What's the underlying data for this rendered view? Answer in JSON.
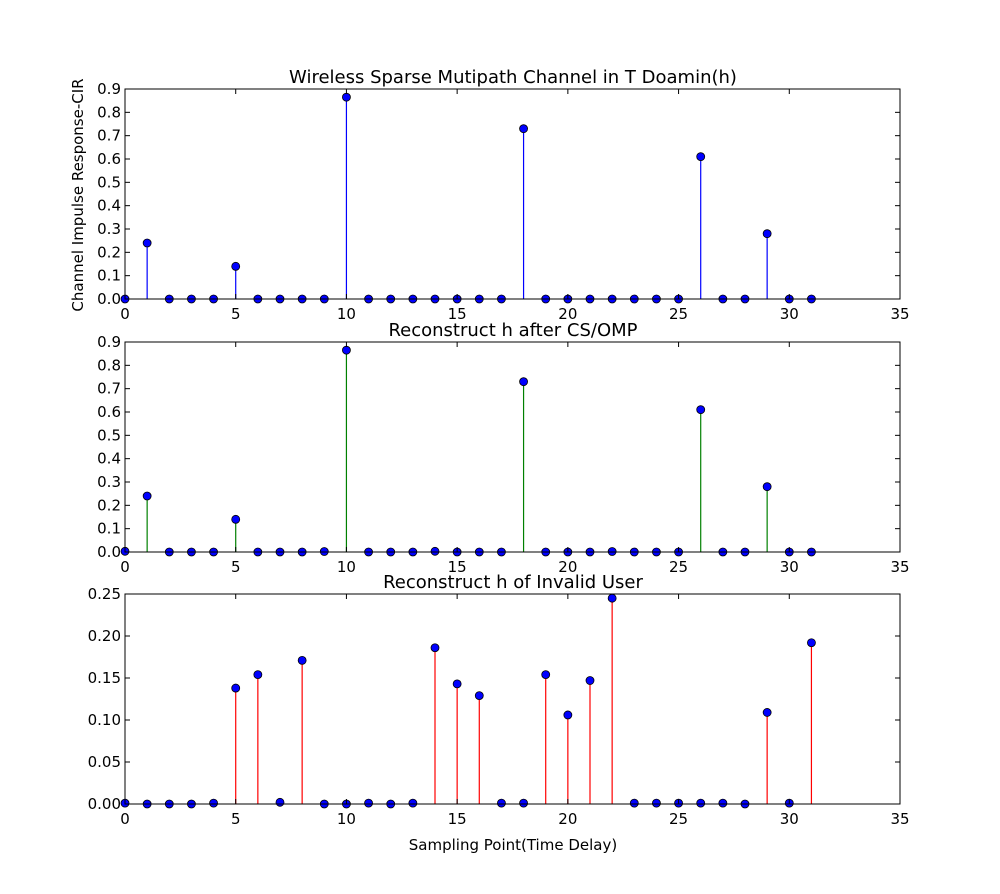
{
  "chart_data": [
    {
      "type": "stem",
      "title": "Wireless Sparse Mutipath Channel in T Doamin(h)",
      "ylabel": "Channel Impulse Response-CIR",
      "xlabel": "",
      "xlim": [
        0,
        35
      ],
      "ylim": [
        0,
        0.9
      ],
      "xticks": [
        "0",
        "5",
        "10",
        "15",
        "20",
        "25",
        "30",
        "35"
      ],
      "yticks": [
        "0.0",
        "0.1",
        "0.2",
        "0.3",
        "0.4",
        "0.5",
        "0.6",
        "0.7",
        "0.8",
        "0.9"
      ],
      "stem_color": "#0000ff",
      "marker_color": "#0000ff",
      "x": [
        0,
        1,
        2,
        3,
        4,
        5,
        6,
        7,
        8,
        9,
        10,
        11,
        12,
        13,
        14,
        15,
        16,
        17,
        18,
        19,
        20,
        21,
        22,
        23,
        24,
        25,
        26,
        27,
        28,
        29,
        30,
        31
      ],
      "values": [
        0,
        0.24,
        0,
        0,
        0,
        0.14,
        0,
        0,
        0,
        0,
        0.865,
        0,
        0,
        0,
        0,
        0,
        0,
        0,
        0.73,
        0,
        0,
        0,
        0,
        0,
        0,
        0,
        0.61,
        0,
        0,
        0.28,
        0,
        0
      ]
    },
    {
      "type": "stem",
      "title": "Reconstruct h after CS/OMP",
      "ylabel": "",
      "xlabel": "",
      "xlim": [
        0,
        35
      ],
      "ylim": [
        0,
        0.9
      ],
      "xticks": [
        "0",
        "5",
        "10",
        "15",
        "20",
        "25",
        "30",
        "35"
      ],
      "yticks": [
        "0.0",
        "0.1",
        "0.2",
        "0.3",
        "0.4",
        "0.5",
        "0.6",
        "0.7",
        "0.8",
        "0.9"
      ],
      "stem_color": "#008000",
      "marker_color": "#0000ff",
      "x": [
        0,
        1,
        2,
        3,
        4,
        5,
        6,
        7,
        8,
        9,
        10,
        11,
        12,
        13,
        14,
        15,
        16,
        17,
        18,
        19,
        20,
        21,
        22,
        23,
        24,
        25,
        26,
        27,
        28,
        29,
        30,
        31
      ],
      "values": [
        0.003,
        0.24,
        0,
        0,
        0,
        0.14,
        0,
        0,
        0,
        0.002,
        0.865,
        0,
        0,
        0,
        0.003,
        0,
        0,
        0,
        0.73,
        0,
        0,
        0,
        0.002,
        0,
        0,
        0,
        0.61,
        0,
        0,
        0.28,
        0,
        0
      ]
    },
    {
      "type": "stem",
      "title": "Reconstruct h of Invalid User",
      "ylabel": "",
      "xlabel": "Sampling Point(Time Delay)",
      "xlim": [
        0,
        35
      ],
      "ylim": [
        0,
        0.25
      ],
      "xticks": [
        "0",
        "5",
        "10",
        "15",
        "20",
        "25",
        "30",
        "35"
      ],
      "yticks": [
        "0.00",
        "0.05",
        "0.10",
        "0.15",
        "0.20",
        "0.25"
      ],
      "stem_color": "#ff0000",
      "marker_color": "#0000ff",
      "x": [
        0,
        1,
        2,
        3,
        4,
        5,
        6,
        7,
        8,
        9,
        10,
        11,
        12,
        13,
        14,
        15,
        16,
        17,
        18,
        19,
        20,
        21,
        22,
        23,
        24,
        25,
        26,
        27,
        28,
        29,
        30,
        31
      ],
      "values": [
        0.001,
        0,
        0,
        0,
        0.001,
        0.138,
        0.154,
        0.002,
        0.171,
        0,
        0,
        0.001,
        0,
        0.001,
        0.186,
        0.143,
        0.129,
        0.001,
        0.001,
        0.154,
        0.106,
        0.147,
        0.245,
        0.001,
        0.001,
        0.001,
        0.001,
        0.001,
        0,
        0.109,
        0.001,
        0.192
      ]
    }
  ]
}
